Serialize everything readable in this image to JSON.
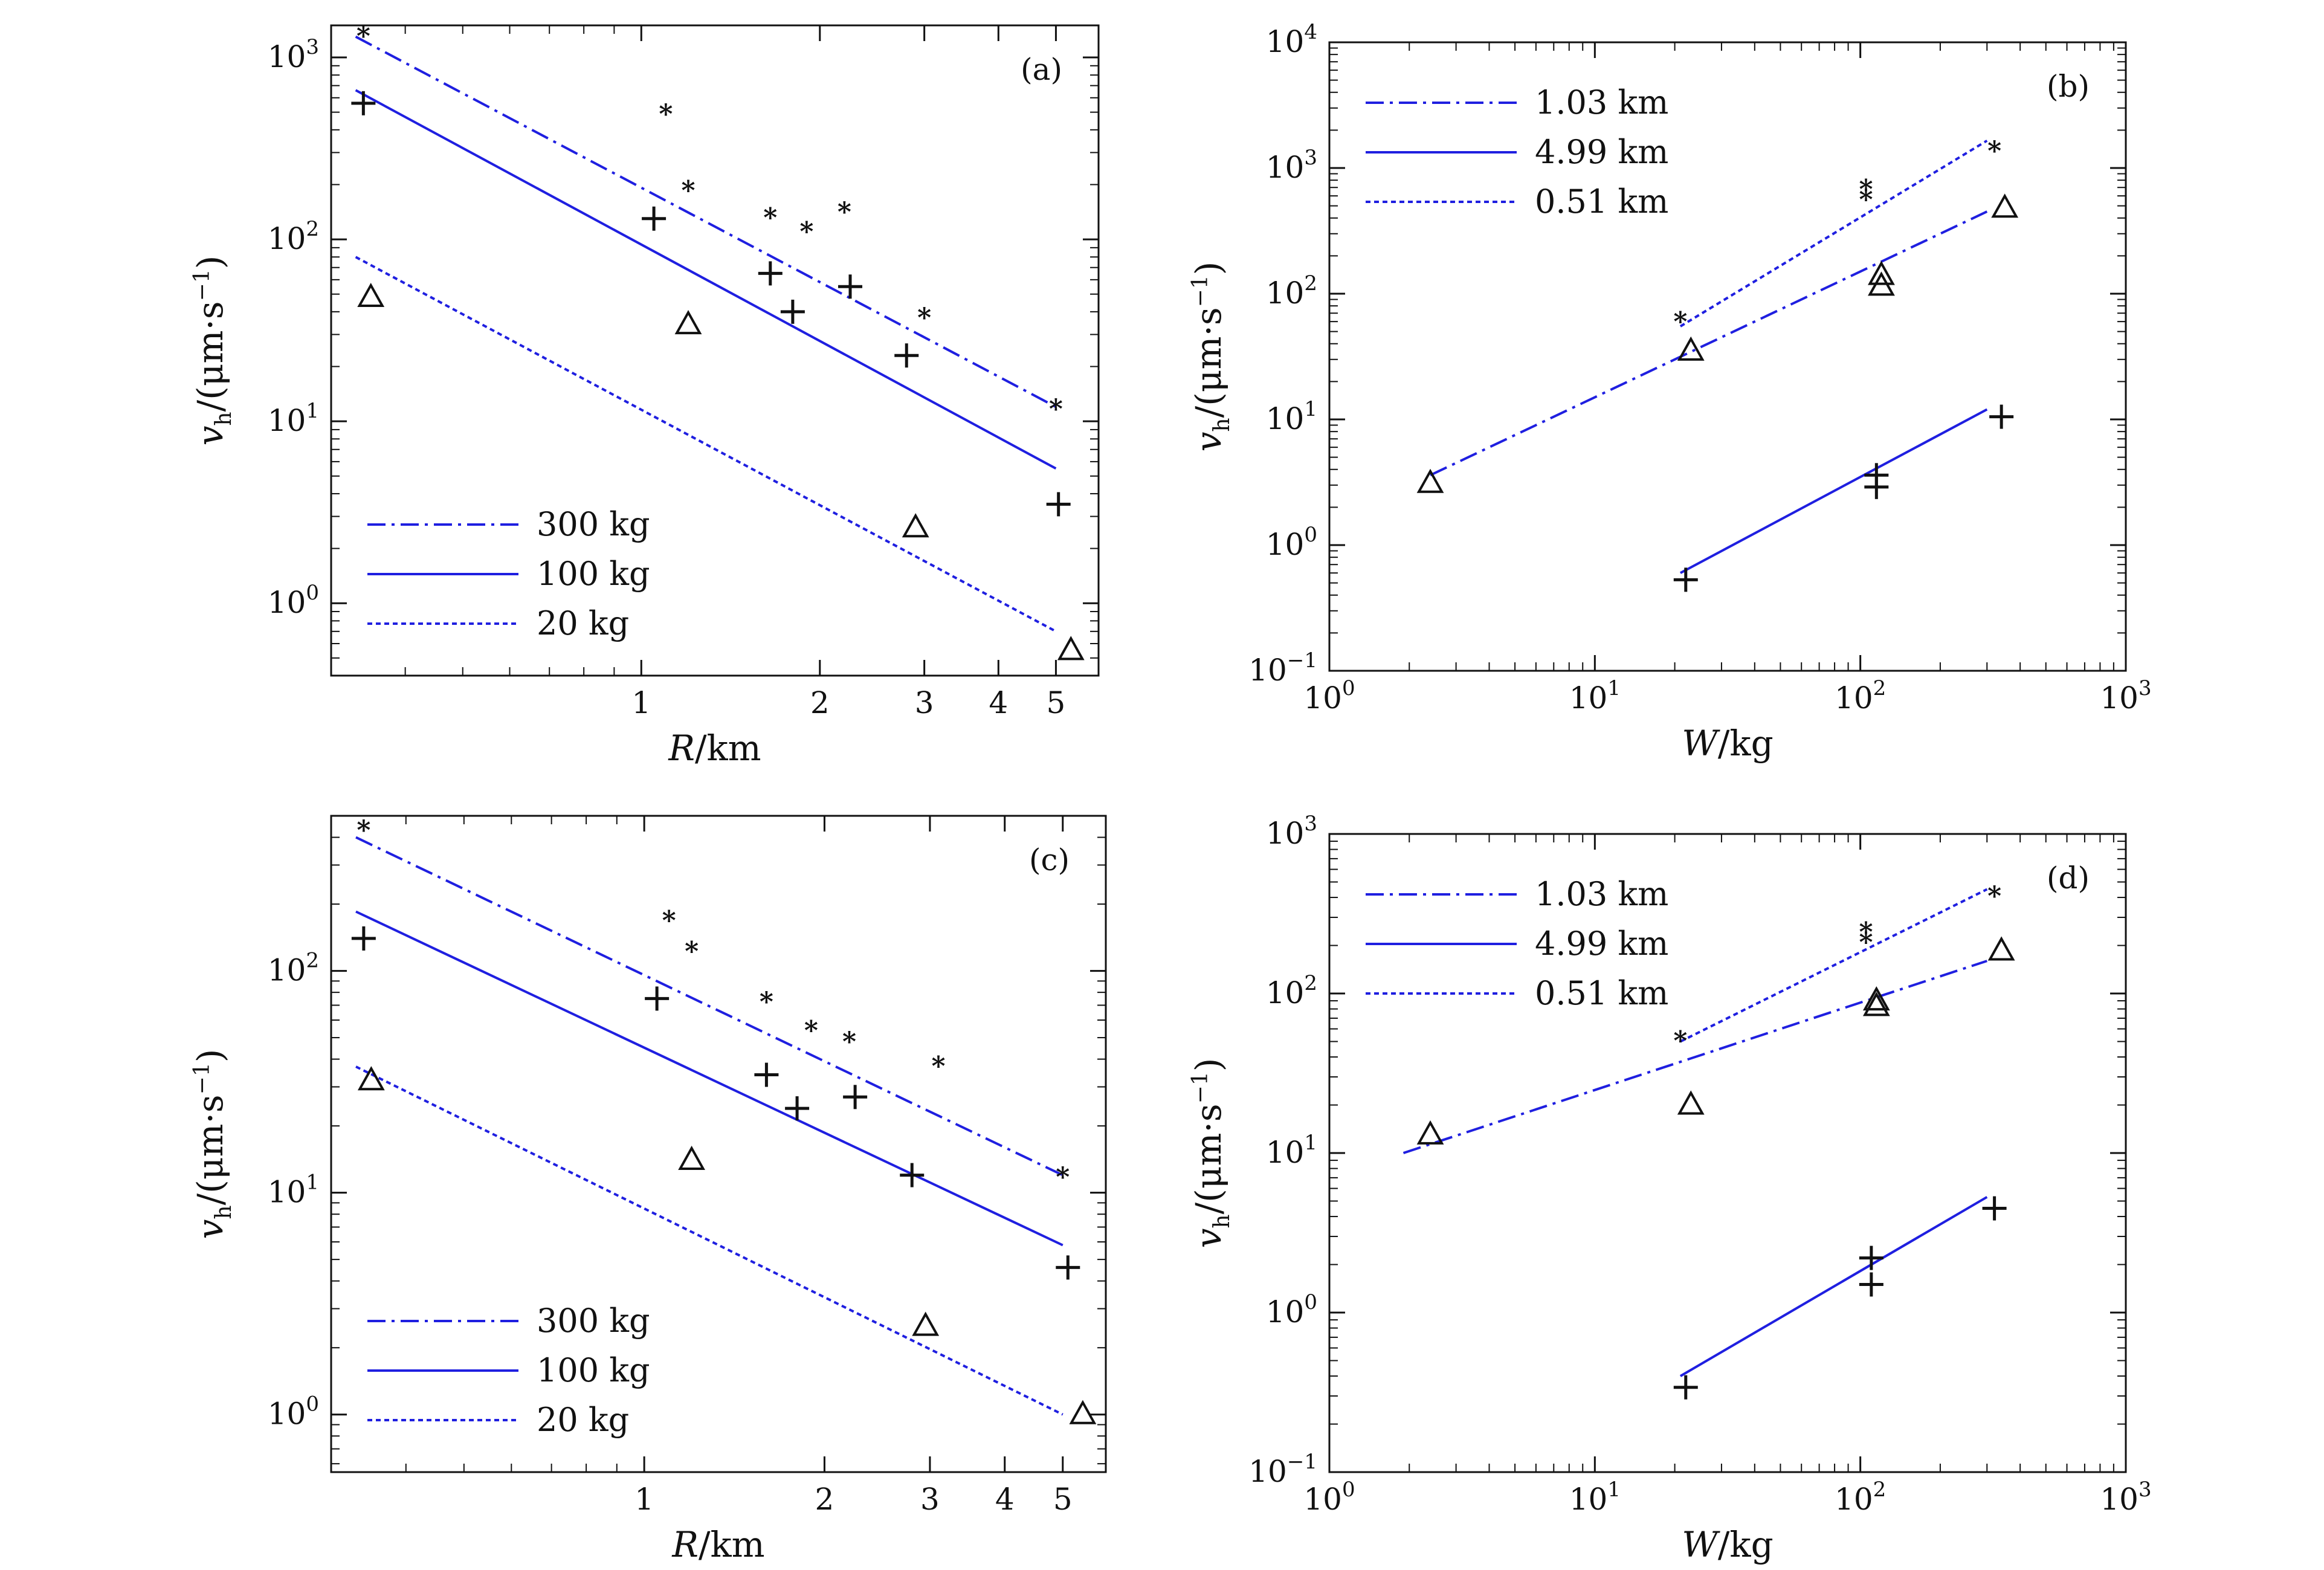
{
  "chart_data": [
    {
      "panel": "(a)",
      "type": "line",
      "xscale": "log",
      "yscale": "log",
      "xlim": [
        0.3,
        5.9
      ],
      "ylim": [
        0.4,
        1500
      ],
      "xlabel_italic": "R",
      "xlabel_unit": "/km",
      "ylabel_italic": "v",
      "ylabel_sub": "h",
      "ylabel_unit": "/(μm·s",
      "ylabel_sup": "−1",
      "ylabel_close": ")",
      "xticks": [
        {
          "v": 1,
          "label": "1"
        },
        {
          "v": 2,
          "label": "2"
        },
        {
          "v": 3,
          "label": "3"
        },
        {
          "v": 4,
          "label": "4"
        },
        {
          "v": 5,
          "label": "5"
        }
      ],
      "yticks": [
        {
          "v": 1,
          "m": "10",
          "e": "0"
        },
        {
          "v": 10,
          "m": "10",
          "e": "1"
        },
        {
          "v": 100,
          "m": "10",
          "e": "2"
        },
        {
          "v": 1000,
          "m": "10",
          "e": "3"
        }
      ],
      "legend": {
        "position": "lower-left",
        "entries": [
          {
            "label": "300 kg",
            "style": "dashdot"
          },
          {
            "label": "100 kg",
            "style": "solid"
          },
          {
            "label": "20 kg",
            "style": "dotted"
          }
        ]
      },
      "lines": [
        {
          "style": "dashdot",
          "points": [
            [
              0.33,
              1300
            ],
            [
              5.0,
              12
            ]
          ]
        },
        {
          "style": "solid",
          "points": [
            [
              0.33,
              660
            ],
            [
              5.0,
              5.5
            ]
          ]
        },
        {
          "style": "dotted",
          "points": [
            [
              0.33,
              80
            ],
            [
              5.0,
              0.7
            ]
          ]
        }
      ],
      "series": [
        {
          "marker": "star",
          "points": [
            [
              0.34,
              1340
            ],
            [
              1.1,
              500
            ],
            [
              1.2,
              190
            ],
            [
              1.65,
              135
            ],
            [
              1.9,
              113
            ],
            [
              2.2,
              145
            ],
            [
              3.0,
              38
            ],
            [
              5.0,
              12
            ]
          ]
        },
        {
          "marker": "plus",
          "points": [
            [
              0.34,
              560
            ],
            [
              1.05,
              130
            ],
            [
              1.65,
              65
            ],
            [
              1.8,
              40
            ],
            [
              2.25,
              55
            ],
            [
              2.8,
              23
            ],
            [
              5.05,
              3.5
            ]
          ]
        },
        {
          "marker": "triangle",
          "points": [
            [
              0.35,
              48
            ],
            [
              1.2,
              34
            ],
            [
              2.9,
              2.6
            ],
            [
              5.3,
              0.55
            ]
          ]
        }
      ]
    },
    {
      "panel": "(b)",
      "type": "line",
      "xscale": "log",
      "yscale": "log",
      "xlim": [
        1,
        1000
      ],
      "ylim": [
        0.1,
        10000
      ],
      "xlabel_italic": "W",
      "xlabel_unit": "/kg",
      "ylabel_italic": "v",
      "ylabel_sub": "h",
      "ylabel_unit": "/(μm·s",
      "ylabel_sup": "−1",
      "ylabel_close": ")",
      "xticks": [
        {
          "v": 1,
          "m": "10",
          "e": "0"
        },
        {
          "v": 10,
          "m": "10",
          "e": "1"
        },
        {
          "v": 100,
          "m": "10",
          "e": "2"
        },
        {
          "v": 1000,
          "m": "10",
          "e": "3"
        }
      ],
      "yticks": [
        {
          "v": 0.1,
          "m": "10",
          "e": "−1"
        },
        {
          "v": 1,
          "m": "10",
          "e": "0"
        },
        {
          "v": 10,
          "m": "10",
          "e": "1"
        },
        {
          "v": 100,
          "m": "10",
          "e": "2"
        },
        {
          "v": 1000,
          "m": "10",
          "e": "3"
        },
        {
          "v": 10000,
          "m": "10",
          "e": "4"
        }
      ],
      "legend": {
        "position": "upper-left",
        "entries": [
          {
            "label": "1.03 km",
            "style": "dashdot"
          },
          {
            "label": "4.99 km",
            "style": "solid"
          },
          {
            "label": "0.51 km",
            "style": "dotted"
          }
        ]
      },
      "lines": [
        {
          "style": "dashdot",
          "points": [
            [
              2.4,
              3.6
            ],
            [
              300,
              450
            ]
          ]
        },
        {
          "style": "solid",
          "points": [
            [
              21,
              0.6
            ],
            [
              300,
              12
            ]
          ]
        },
        {
          "style": "dotted",
          "points": [
            [
              21,
              55
            ],
            [
              300,
              1650
            ]
          ]
        }
      ],
      "series": [
        {
          "marker": "star",
          "points": [
            [
              21,
              62
            ],
            [
              105,
              700
            ],
            [
              105,
              580
            ],
            [
              320,
              1420
            ]
          ]
        },
        {
          "marker": "plus",
          "points": [
            [
              22,
              0.53
            ],
            [
              115,
              3.6
            ],
            [
              115,
              2.9
            ],
            [
              340,
              10.5
            ]
          ]
        },
        {
          "marker": "triangle",
          "points": [
            [
              2.4,
              3.1
            ],
            [
              23,
              35
            ],
            [
              120,
              140
            ],
            [
              120,
              115
            ],
            [
              350,
              480
            ]
          ]
        }
      ]
    },
    {
      "panel": "(c)",
      "type": "line",
      "xscale": "log",
      "yscale": "log",
      "xlim": [
        0.3,
        5.9
      ],
      "ylim": [
        0.55,
        500
      ],
      "xlabel_italic": "R",
      "xlabel_unit": "/km",
      "ylabel_italic": "v",
      "ylabel_sub": "h",
      "ylabel_unit": "/(μm·s",
      "ylabel_sup": "−1",
      "ylabel_close": ")",
      "xticks": [
        {
          "v": 1,
          "label": "1"
        },
        {
          "v": 2,
          "label": "2"
        },
        {
          "v": 3,
          "label": "3"
        },
        {
          "v": 4,
          "label": "4"
        },
        {
          "v": 5,
          "label": "5"
        }
      ],
      "yticks": [
        {
          "v": 1,
          "m": "10",
          "e": "0"
        },
        {
          "v": 10,
          "m": "10",
          "e": "1"
        },
        {
          "v": 100,
          "m": "10",
          "e": "2"
        }
      ],
      "legend": {
        "position": "lower-left",
        "entries": [
          {
            "label": "300 kg",
            "style": "dashdot"
          },
          {
            "label": "100 kg",
            "style": "solid"
          },
          {
            "label": "20 kg",
            "style": "dotted"
          }
        ]
      },
      "lines": [
        {
          "style": "dashdot",
          "points": [
            [
              0.33,
              400
            ],
            [
              5.0,
              12
            ]
          ]
        },
        {
          "style": "solid",
          "points": [
            [
              0.33,
              185
            ],
            [
              5.0,
              5.8
            ]
          ]
        },
        {
          "style": "dotted",
          "points": [
            [
              0.33,
              37
            ],
            [
              5.0,
              1.0
            ]
          ]
        }
      ],
      "series": [
        {
          "marker": "star",
          "points": [
            [
              0.34,
              440
            ],
            [
              1.1,
              172
            ],
            [
              1.2,
              125
            ],
            [
              1.6,
              74
            ],
            [
              1.9,
              55
            ],
            [
              2.2,
              49
            ],
            [
              3.1,
              38
            ],
            [
              5.0,
              12
            ]
          ]
        },
        {
          "marker": "plus",
          "points": [
            [
              0.34,
              140
            ],
            [
              1.05,
              75
            ],
            [
              1.6,
              34
            ],
            [
              1.8,
              24
            ],
            [
              2.25,
              27
            ],
            [
              2.8,
              12
            ],
            [
              5.1,
              4.6
            ]
          ]
        },
        {
          "marker": "triangle",
          "points": [
            [
              0.35,
              32
            ],
            [
              1.2,
              14
            ],
            [
              2.95,
              2.5
            ],
            [
              5.4,
              1.0
            ]
          ]
        }
      ]
    },
    {
      "panel": "(d)",
      "type": "line",
      "xscale": "log",
      "yscale": "log",
      "xlim": [
        1,
        1000
      ],
      "ylim": [
        0.1,
        1000
      ],
      "xlabel_italic": "W",
      "xlabel_unit": "/kg",
      "ylabel_italic": "v",
      "ylabel_sub": "h",
      "ylabel_unit": "/(μm·s",
      "ylabel_sup": "−1",
      "ylabel_close": ")",
      "xticks": [
        {
          "v": 1,
          "m": "10",
          "e": "0"
        },
        {
          "v": 10,
          "m": "10",
          "e": "1"
        },
        {
          "v": 100,
          "m": "10",
          "e": "2"
        },
        {
          "v": 1000,
          "m": "10",
          "e": "3"
        }
      ],
      "yticks": [
        {
          "v": 0.1,
          "m": "10",
          "e": "−1"
        },
        {
          "v": 1,
          "m": "10",
          "e": "0"
        },
        {
          "v": 10,
          "m": "10",
          "e": "1"
        },
        {
          "v": 100,
          "m": "10",
          "e": "2"
        },
        {
          "v": 1000,
          "m": "10",
          "e": "3"
        }
      ],
      "legend": {
        "position": "upper-left",
        "entries": [
          {
            "label": "1.03 km",
            "style": "dashdot"
          },
          {
            "label": "4.99 km",
            "style": "solid"
          },
          {
            "label": "0.51 km",
            "style": "dotted"
          }
        ]
      },
      "lines": [
        {
          "style": "dashdot",
          "points": [
            [
              1.9,
              10
            ],
            [
              300,
              160
            ]
          ]
        },
        {
          "style": "solid",
          "points": [
            [
              21,
              0.4
            ],
            [
              300,
              5.3
            ]
          ]
        },
        {
          "style": "dotted",
          "points": [
            [
              21,
              50
            ],
            [
              300,
              450
            ]
          ]
        }
      ],
      "series": [
        {
          "marker": "star",
          "points": [
            [
              21,
              52
            ],
            [
              105,
              250
            ],
            [
              105,
              215
            ],
            [
              320,
              420
            ]
          ]
        },
        {
          "marker": "plus",
          "points": [
            [
              22,
              0.34
            ],
            [
              110,
              2.2
            ],
            [
              110,
              1.5
            ],
            [
              320,
              4.5
            ]
          ]
        },
        {
          "marker": "triangle",
          "points": [
            [
              2.4,
              13
            ],
            [
              23,
              20
            ],
            [
              115,
              90
            ],
            [
              115,
              83
            ],
            [
              340,
              185
            ]
          ]
        }
      ]
    }
  ]
}
